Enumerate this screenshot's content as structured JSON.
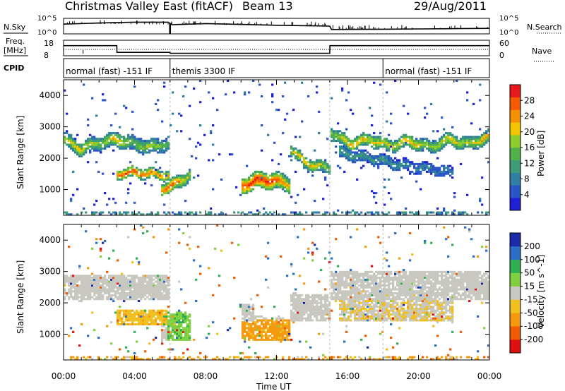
{
  "header": {
    "title": "Christmas Valley East (fitACF)",
    "beam": "Beam 13",
    "date": "29/Aug/2011"
  },
  "labels": {
    "nsky": "N.Sky",
    "nsearch": "N.Search",
    "freq_line1": "Freq.",
    "freq_line2": "[MHz]",
    "nave": "Nave",
    "cpid": "CPID",
    "nsky_ticks": [
      "10^5",
      "10^0"
    ],
    "nsearch_ticks": [
      "10^5",
      "10^0"
    ],
    "freq_ticks": [
      "18",
      "8"
    ],
    "nave_ticks": [
      "60",
      "0"
    ]
  },
  "cpid_segments": [
    {
      "label": "normal (fast) -151 IF",
      "start": 0.0,
      "end": 6.0
    },
    {
      "label": "themis 3300 IF",
      "start": 6.0,
      "end": 18.0
    },
    {
      "label": "normal (fast) -151 IF",
      "start": 18.0,
      "end": 24.0
    }
  ],
  "colors": {
    "power": [
      "#1f1fd6",
      "#2a55c8",
      "#2f7fa3",
      "#3d9b78",
      "#50b04a",
      "#8ccc2e",
      "#f5c400",
      "#f59000",
      "#f55a00",
      "#e61a1a"
    ],
    "velocity": [
      "#e01010",
      "#f05a00",
      "#f59a10",
      "#f0c020",
      "#c8c8c0",
      "#7fd040",
      "#2fb050",
      "#2a6ec8",
      "#1a2aa8"
    ]
  },
  "chart_data": [
    {
      "type": "heatmap",
      "name": "power",
      "xlabel": "Time UT",
      "ylabel": "Slant Range [km]",
      "colorbar_label": "Power [dB]",
      "colorbar_ticks": [
        "4",
        "8",
        "12",
        "16",
        "20",
        "24",
        "28"
      ],
      "x_ticks": [
        "00:00",
        "04:00",
        "08:00",
        "12:00",
        "16:00",
        "20:00",
        "00:00"
      ],
      "y_ticks": [
        "1000",
        "2000",
        "3000",
        "4000"
      ],
      "xlim": [
        0,
        24
      ],
      "ylim": [
        180,
        4500
      ],
      "clim": [
        0,
        30
      ],
      "bands": [
        {
          "t0": 0.0,
          "t1": 6.0,
          "r_center": [
            2600,
            2300,
            2500,
            2600,
            2450,
            2350,
            2500
          ],
          "width": 220,
          "val": [
            18,
            20,
            16,
            22,
            14,
            18,
            12
          ]
        },
        {
          "t0": 3.0,
          "t1": 6.0,
          "r_center": [
            1500,
            1550,
            1500,
            1450
          ],
          "width": 160,
          "val": [
            26,
            28,
            24,
            22
          ]
        },
        {
          "t0": 5.5,
          "t1": 7.2,
          "r_center": [
            1000,
            1100,
            1300,
            1500
          ],
          "width": 200,
          "val": [
            24,
            28,
            22,
            16
          ]
        },
        {
          "t0": 10.0,
          "t1": 12.8,
          "r_center": [
            1100,
            1300,
            1300,
            1150
          ],
          "width": 260,
          "val": [
            26,
            30,
            28,
            20
          ]
        },
        {
          "t0": 12.8,
          "t1": 15.0,
          "r_center": [
            2300,
            1900,
            1750,
            1700
          ],
          "width": 180,
          "val": [
            18,
            22,
            20,
            16
          ]
        },
        {
          "t0": 15.0,
          "t1": 24.0,
          "r_center": [
            2850,
            2450,
            2600,
            2400,
            2550,
            2350,
            2600,
            2450,
            2700
          ],
          "width": 200,
          "val": [
            16,
            22,
            20,
            18,
            22,
            16,
            20,
            18,
            22
          ]
        },
        {
          "t0": 15.5,
          "t1": 22.0,
          "r_center": [
            2200,
            1950,
            1700,
            1550
          ],
          "width": 180,
          "val": [
            12,
            10,
            8,
            8
          ]
        }
      ],
      "low_echo": {
        "r": 280,
        "val": 10
      },
      "noise_density": 0.02
    },
    {
      "type": "heatmap",
      "name": "velocity",
      "xlabel": "Time UT",
      "ylabel": "Slant Range [km]",
      "colorbar_label": "Velocity [m s^-1]",
      "colorbar_ticks": [
        "-200",
        "-100",
        "-50",
        "-15",
        "15",
        "50",
        "100",
        "200"
      ],
      "x_ticks": [
        "00:00",
        "04:00",
        "08:00",
        "12:00",
        "16:00",
        "20:00",
        "00:00"
      ],
      "y_ticks": [
        "1000",
        "2000",
        "3000",
        "4000"
      ],
      "xlim": [
        0,
        24
      ],
      "ylim": [
        180,
        4500
      ],
      "clim": [
        -250,
        250
      ],
      "regions": [
        {
          "t0": 0.0,
          "t1": 6.0,
          "r0": 2100,
          "r1": 2900,
          "v": 0
        },
        {
          "t0": 3.0,
          "t1": 6.0,
          "r0": 1300,
          "r1": 1800,
          "v": -40
        },
        {
          "t0": 5.8,
          "t1": 7.2,
          "r0": 800,
          "r1": 1700,
          "v": 40
        },
        {
          "t0": 10.0,
          "t1": 12.8,
          "r0": 800,
          "r1": 1500,
          "v": -60
        },
        {
          "t0": 10.0,
          "t1": 10.8,
          "r0": 1400,
          "r1": 2000,
          "v": 0
        },
        {
          "t0": 12.8,
          "t1": 15.0,
          "r0": 1400,
          "r1": 2300,
          "v": 0
        },
        {
          "t0": 15.0,
          "t1": 24.0,
          "r0": 2100,
          "r1": 3000,
          "v": 0
        },
        {
          "t0": 15.5,
          "t1": 22.0,
          "r0": 1400,
          "r1": 2100,
          "v": -10
        }
      ],
      "low_echo": {
        "r": 280,
        "v": -50
      }
    },
    {
      "type": "line",
      "name": "nsky",
      "x": [
        0,
        2,
        4,
        5.9,
        6.1,
        8,
        10,
        12,
        14,
        15,
        15.1,
        18,
        20,
        22,
        24
      ],
      "y": [
        3.2,
        3.6,
        3.9,
        3.9,
        3.0,
        3.4,
        3.1,
        2.8,
        2.6,
        2.5,
        1.3,
        1.4,
        1.5,
        1.6,
        1.7
      ]
    },
    {
      "type": "line",
      "name": "freq_mhz",
      "x": [
        0,
        3,
        3.01,
        6,
        6.01,
        15,
        15.01,
        24
      ],
      "y": [
        14.5,
        14.5,
        10.2,
        10.2,
        9.6,
        9.6,
        14.5,
        14.5
      ]
    }
  ]
}
